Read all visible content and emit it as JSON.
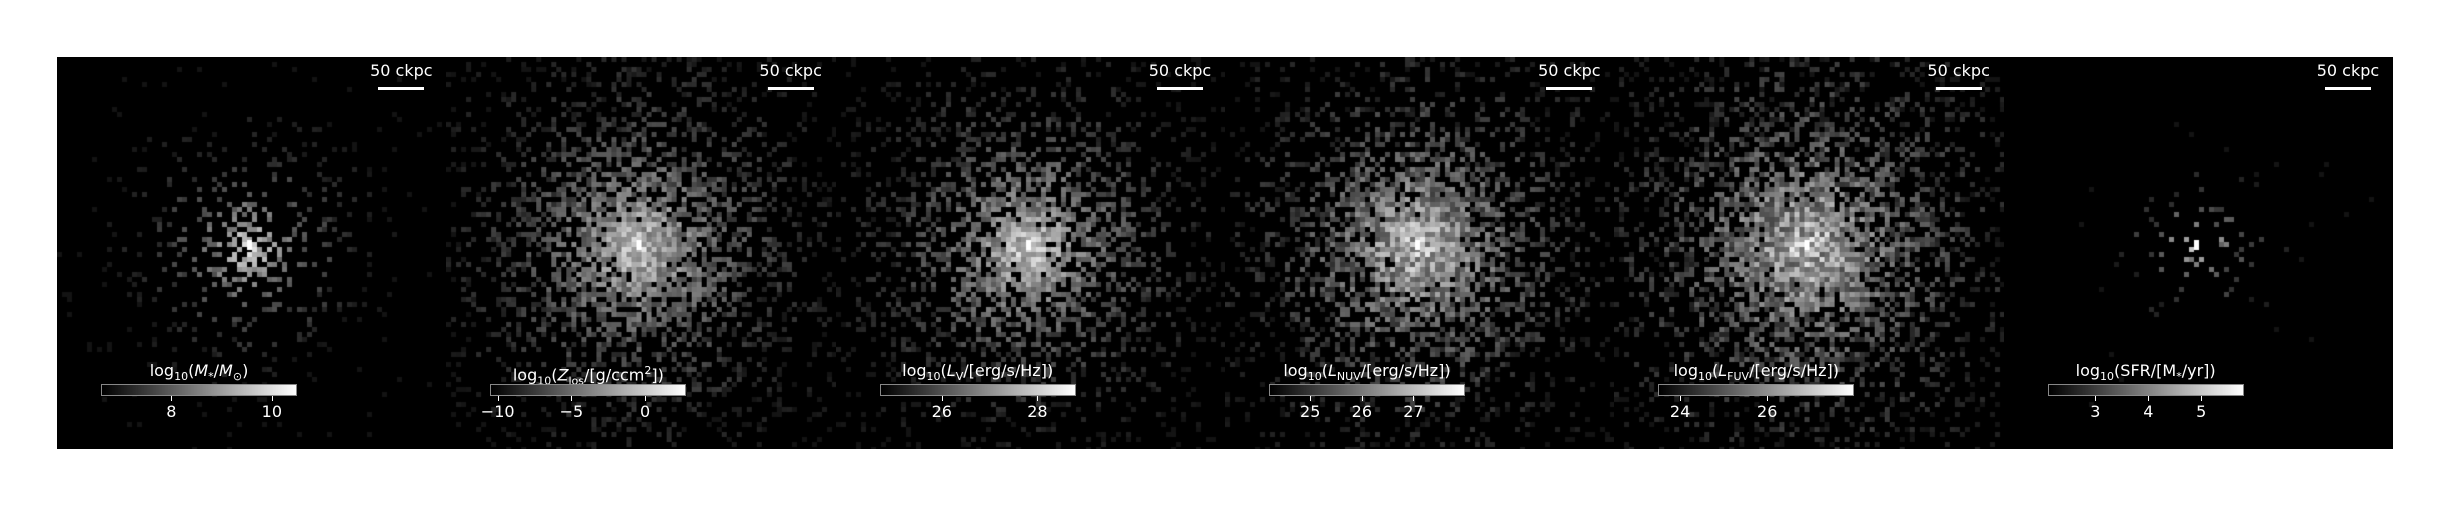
{
  "panels": [
    {
      "scalebar": "50 ckpc",
      "cbar": {
        "label_html": "log<sub>10</sub>(<i>M</i><sub>*</sub>/<i>M</i><sub>&#8857;</sub>)",
        "range": [
          6.6,
          10.5
        ],
        "ticks": [
          {
            "value": 8,
            "label": "8"
          },
          {
            "value": 10,
            "label": "10"
          }
        ]
      },
      "seed": 11,
      "density": 0.35,
      "spread": 60,
      "peak": 1.0,
      "noise": 0.25
    },
    {
      "scalebar": "50 ckpc",
      "cbar": {
        "label_html": "log<sub>10</sub>(<i>Z</i><sub>los</sub>/[g/ccm<sup>2</sup>])",
        "range": [
          -10.5,
          2.8
        ],
        "ticks": [
          {
            "value": -10,
            "label": "−10"
          },
          {
            "value": -5,
            "label": "−5"
          },
          {
            "value": 0,
            "label": "0"
          }
        ]
      },
      "seed": 23,
      "density": 0.8,
      "spread": 95,
      "peak": 0.9,
      "noise": 0.35
    },
    {
      "scalebar": "50 ckpc",
      "cbar": {
        "label_html": "log<sub>10</sub>(<i>L</i><sub>V</sub>/[erg/s/Hz])",
        "range": [
          24.7,
          28.8
        ],
        "ticks": [
          {
            "value": 26,
            "label": "26"
          },
          {
            "value": 28,
            "label": "28"
          }
        ]
      },
      "seed": 37,
      "density": 0.75,
      "spread": 90,
      "peak": 0.95,
      "noise": 0.35
    },
    {
      "scalebar": "50 ckpc",
      "cbar": {
        "label_html": "log<sub>10</sub>(<i>L</i><sub>NUV</sub>/[erg/s/Hz])",
        "range": [
          24.2,
          28.0
        ],
        "ticks": [
          {
            "value": 25,
            "label": "25"
          },
          {
            "value": 26,
            "label": "26"
          },
          {
            "value": 27,
            "label": "27"
          }
        ]
      },
      "seed": 51,
      "density": 0.85,
      "spread": 95,
      "peak": 0.9,
      "noise": 0.45
    },
    {
      "scalebar": "50 ckpc",
      "cbar": {
        "label_html": "log<sub>10</sub>(<i>L</i><sub>FUV</sub>/[erg/s/Hz])",
        "range": [
          23.5,
          28.0
        ],
        "ticks": [
          {
            "value": 24,
            "label": "24"
          },
          {
            "value": 26,
            "label": "26"
          }
        ]
      },
      "seed": 67,
      "density": 0.9,
      "spread": 100,
      "peak": 0.9,
      "noise": 0.5
    },
    {
      "scalebar": "50 ckpc",
      "cbar": {
        "label_html": "log<sub>10</sub>(SFR/[M<sub>*</sub>/yr])",
        "range": [
          2.1,
          5.8
        ],
        "ticks": [
          {
            "value": 3,
            "label": "3"
          },
          {
            "value": 4,
            "label": "4"
          },
          {
            "value": 5,
            "label": "5"
          }
        ]
      },
      "seed": 83,
      "density": 0.12,
      "spread": 40,
      "peak": 1.0,
      "noise": 0.3
    }
  ],
  "colors": {
    "background": "#000000",
    "page": "#ffffff",
    "text": "#ffffff"
  }
}
